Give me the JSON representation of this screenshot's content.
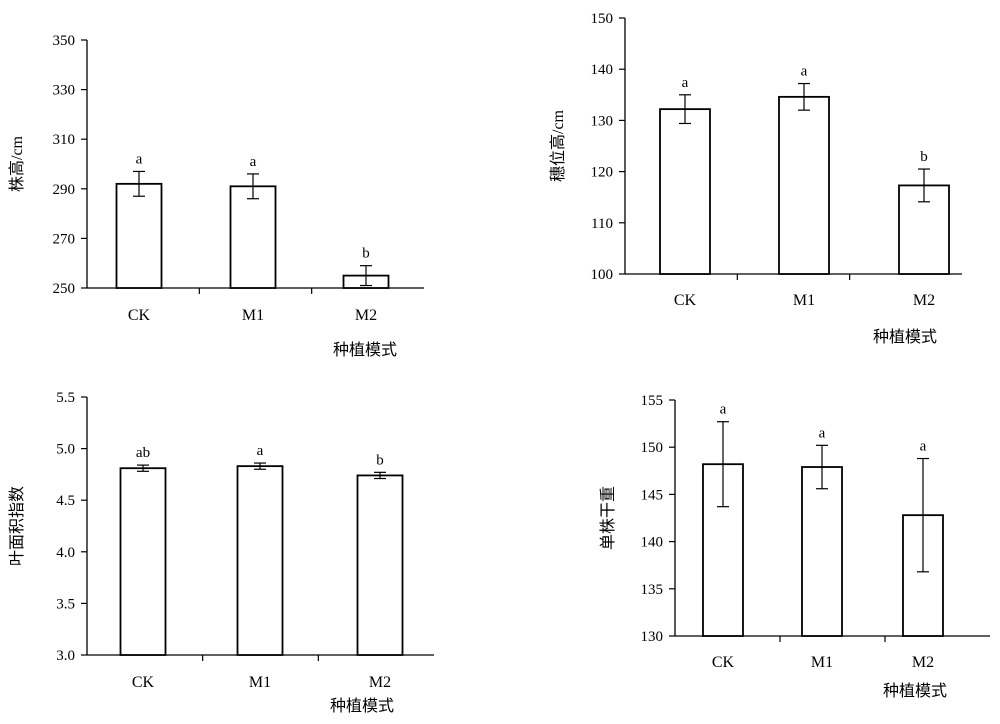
{
  "chart_data": [
    {
      "type": "bar",
      "ylabel": "株高/cm",
      "xlabel": "种植模式",
      "categories": [
        "CK",
        "M1",
        "M2"
      ],
      "values": [
        292,
        291,
        255
      ],
      "errors": [
        5,
        5,
        4
      ],
      "significance": [
        "a",
        "a",
        "b"
      ],
      "ylim": [
        250,
        350
      ],
      "yticks": [
        250,
        270,
        290,
        310,
        330,
        350
      ],
      "grid": false
    },
    {
      "type": "bar",
      "ylabel": "穗位高/cm",
      "xlabel": "种植模式",
      "categories": [
        "CK",
        "M1",
        "M2"
      ],
      "values": [
        132.2,
        134.6,
        117.3
      ],
      "errors": [
        2.8,
        2.6,
        3.2
      ],
      "significance": [
        "a",
        "a",
        "b"
      ],
      "ylim": [
        100,
        150
      ],
      "yticks": [
        100,
        110,
        120,
        130,
        140,
        150
      ],
      "grid": false
    },
    {
      "type": "bar",
      "ylabel": "叶面积指数",
      "xlabel": "种植模式",
      "categories": [
        "CK",
        "M1",
        "M2"
      ],
      "values": [
        4.81,
        4.83,
        4.74
      ],
      "errors": [
        0.03,
        0.03,
        0.03
      ],
      "significance": [
        "ab",
        "a",
        "b"
      ],
      "ylim": [
        3.0,
        5.5
      ],
      "yticks": [
        "3.0",
        "3.5",
        "4.0",
        "4.5",
        "5.0",
        "5.5"
      ],
      "grid": false
    },
    {
      "type": "bar",
      "ylabel": "单株干重",
      "xlabel": "种植模式",
      "categories": [
        "CK",
        "M1",
        "M2"
      ],
      "values": [
        148.2,
        147.9,
        142.8
      ],
      "errors": [
        4.5,
        2.3,
        6.0
      ],
      "significance": [
        "a",
        "a",
        "a"
      ],
      "ylim": [
        130,
        155
      ],
      "yticks": [
        130,
        135,
        140,
        145,
        150,
        155
      ],
      "grid": false
    }
  ]
}
